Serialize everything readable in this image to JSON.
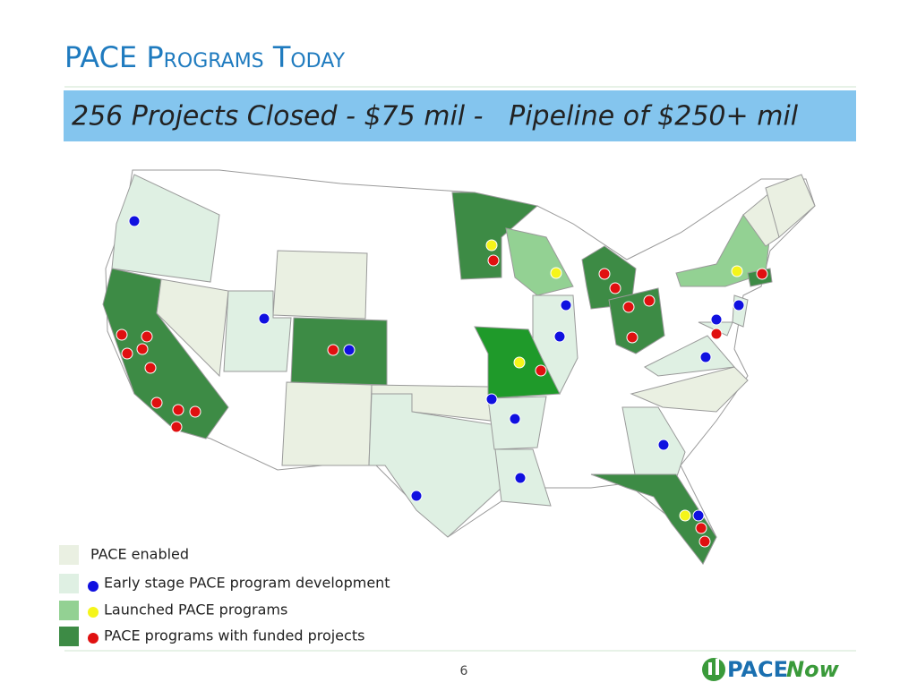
{
  "header": {
    "title": "PACE Programs Today",
    "banner": "256 Projects Closed - $75 mil -   Pipeline of $250+ mil"
  },
  "legend": {
    "items": [
      {
        "label": "PACE enabled"
      },
      {
        "label": "Early stage PACE program development"
      },
      {
        "label": "Launched PACE programs"
      },
      {
        "label": "PACE programs with funded projects"
      }
    ]
  },
  "footer": {
    "page_number": "6",
    "logo_prefix": "PACE",
    "logo_suffix": "Now"
  }
}
